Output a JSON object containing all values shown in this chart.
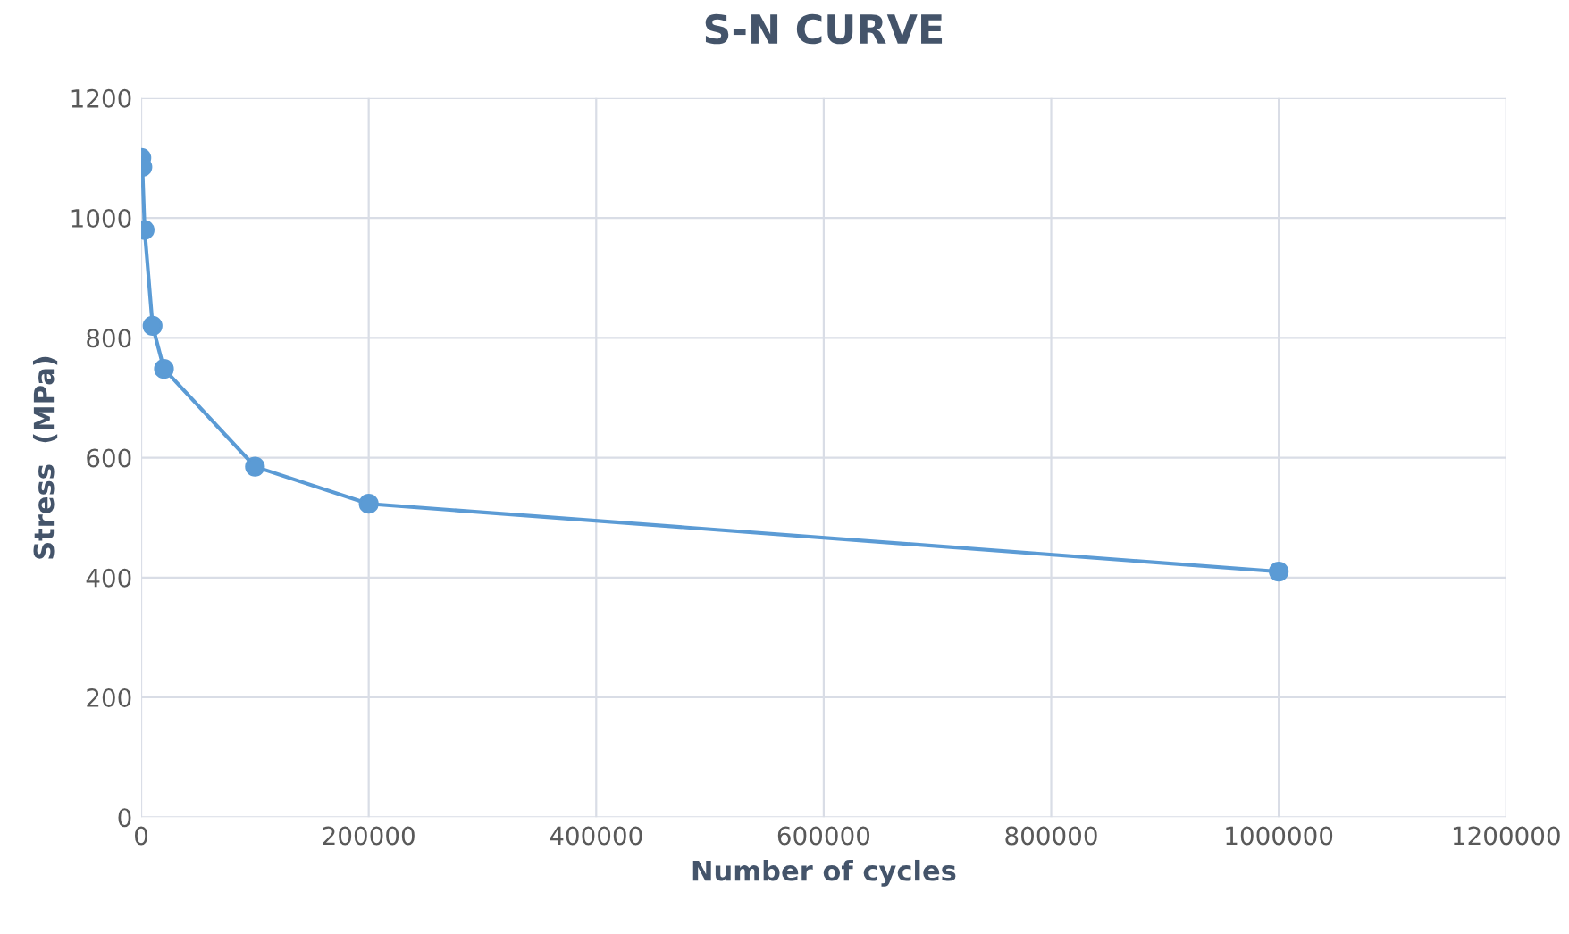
{
  "chart_data": {
    "type": "line",
    "title": "S-N CURVE",
    "xlabel": "Number of cycles",
    "ylabel": "Stress  (MPa)",
    "series": [
      {
        "color": "#5b9bd5",
        "x": [
          100,
          1000,
          3000,
          10000,
          20000,
          100000,
          200000,
          1000000
        ],
        "values": [
          1100,
          1085,
          980,
          820,
          748,
          585,
          523,
          410
        ]
      }
    ],
    "xlim": [
      0,
      1200000
    ],
    "xticks": [
      0,
      200000,
      400000,
      600000,
      800000,
      1000000,
      1200000
    ],
    "ylim": [
      0,
      1200
    ],
    "yticks": [
      0,
      200,
      400,
      600,
      800,
      1000,
      1200
    ],
    "grid": true,
    "marker": "circle",
    "line_style": "solid"
  }
}
